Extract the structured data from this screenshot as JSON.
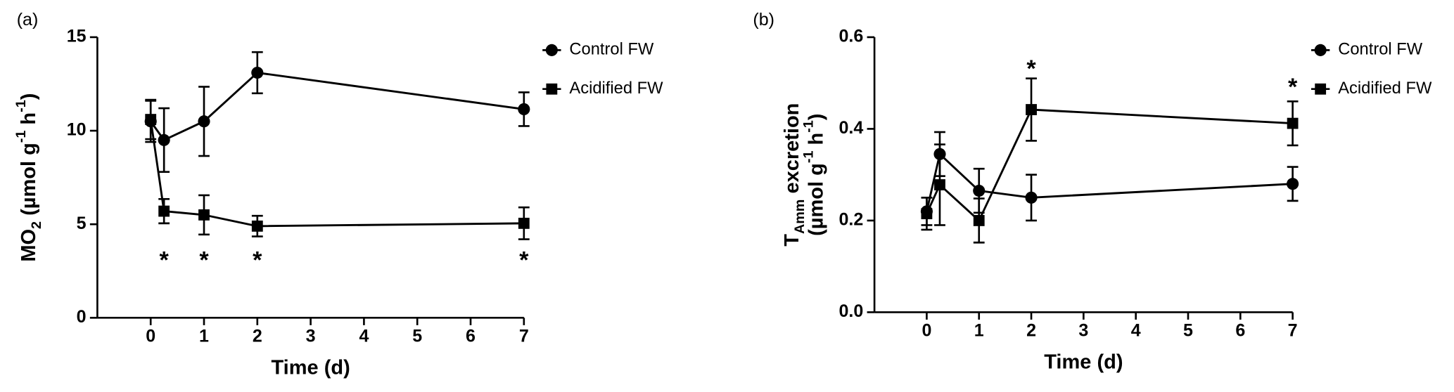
{
  "chart_data": [
    {
      "type": "line",
      "panel_label": "(a)",
      "xlabel": "Time (d)",
      "ylabel": [
        [
          {
            "text": "MO"
          },
          {
            "text": "2",
            "shift": "sub"
          },
          {
            "text": " (µmol g"
          },
          {
            "text": "-1",
            "shift": "super"
          },
          {
            "text": " h"
          },
          {
            "text": "-1",
            "shift": "super"
          },
          {
            "text": ")"
          }
        ]
      ],
      "x": [
        0,
        0.25,
        1,
        2,
        7
      ],
      "xlim": [
        -1,
        7
      ],
      "xticks": [
        0,
        1,
        2,
        3,
        4,
        5,
        6,
        7
      ],
      "ylim": [
        0,
        15
      ],
      "yticks": [
        0,
        5,
        10,
        15
      ],
      "legend": "upper right",
      "series": [
        {
          "name": "Control FW",
          "marker": "circle",
          "color": "#000000",
          "values": [
            10.5,
            9.5,
            10.5,
            13.1,
            11.15
          ],
          "errors": [
            1.1,
            1.7,
            1.85,
            1.1,
            0.9
          ]
        },
        {
          "name": "Acidified FW",
          "marker": "square",
          "color": "#000000",
          "values": [
            10.6,
            5.7,
            5.5,
            4.9,
            5.05
          ],
          "errors": [
            1.05,
            0.65,
            1.05,
            0.55,
            0.85
          ]
        }
      ],
      "annotations": [
        {
          "text": "*",
          "x": 0.25,
          "y": 3.3
        },
        {
          "text": "*",
          "x": 1,
          "y": 3.3
        },
        {
          "text": "*",
          "x": 2,
          "y": 3.3
        },
        {
          "text": "*",
          "x": 7,
          "y": 3.3
        }
      ]
    },
    {
      "type": "line",
      "panel_label": "(b)",
      "xlabel": "Time (d)",
      "ylabel": [
        [
          {
            "text": "T"
          },
          {
            "text": "Amm",
            "shift": "sub"
          },
          {
            "text": " excretion"
          }
        ],
        [
          {
            "text": "(µmol g"
          },
          {
            "text": "-1",
            "shift": "super"
          },
          {
            "text": " h"
          },
          {
            "text": "-1",
            "shift": "super"
          },
          {
            "text": ")"
          }
        ]
      ],
      "x": [
        0,
        0.25,
        1,
        2,
        7
      ],
      "xlim": [
        -1,
        7
      ],
      "xticks": [
        0,
        1,
        2,
        3,
        4,
        5,
        6,
        7
      ],
      "ylim": [
        0,
        0.6
      ],
      "yticks": [
        {
          "value": 0,
          "label": "0.0"
        },
        0.2,
        0.4,
        0.6
      ],
      "legend": "upper right",
      "series": [
        {
          "name": "Control FW",
          "marker": "circle",
          "color": "#000000",
          "values": [
            0.22,
            0.345,
            0.265,
            0.25,
            0.28
          ],
          "errors": [
            0.03,
            0.048,
            0.048,
            0.05,
            0.037
          ]
        },
        {
          "name": "Acidified FW",
          "marker": "square",
          "color": "#000000",
          "values": [
            0.215,
            0.278,
            0.2,
            0.442,
            0.412
          ],
          "errors": [
            0.035,
            0.088,
            0.048,
            0.068,
            0.048
          ]
        }
      ],
      "annotations": [
        {
          "text": "*",
          "x": 2,
          "y": 0.54
        },
        {
          "text": "*",
          "x": 7,
          "y": 0.5
        }
      ]
    }
  ]
}
